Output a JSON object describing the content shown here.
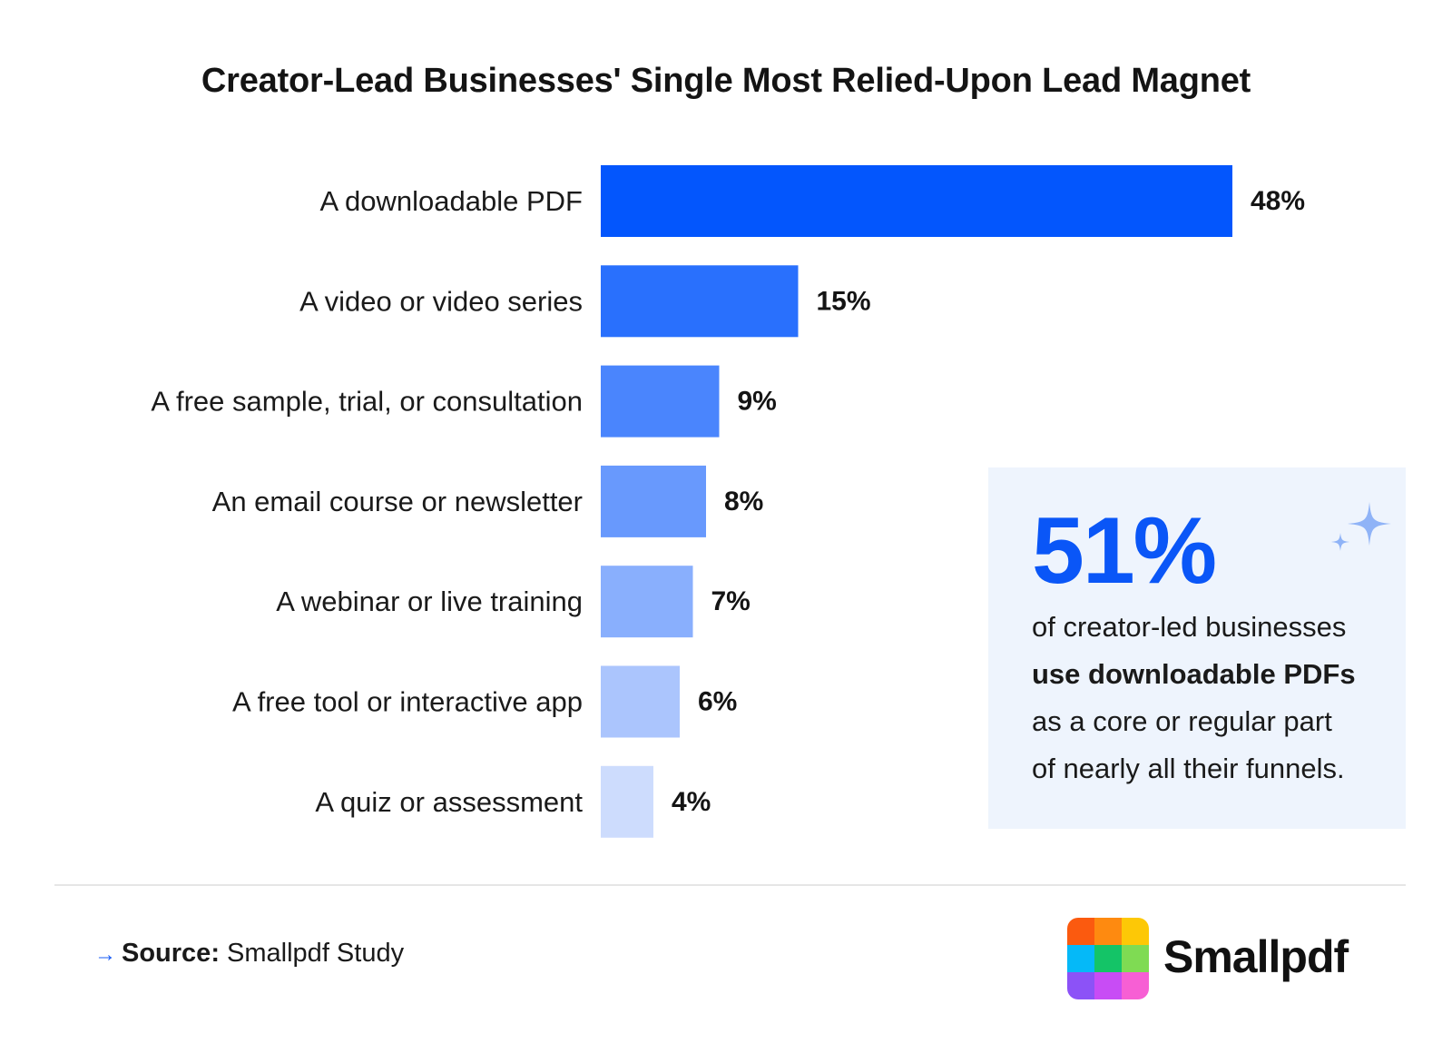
{
  "chart_data": {
    "type": "bar",
    "orientation": "horizontal",
    "title": "Creator-Lead Businesses' Single Most Relied-Upon Lead Magnet",
    "categories": [
      "A downloadable PDF",
      "A video or video series",
      "A free sample, trial, or consultation",
      "An email course or newsletter",
      "A webinar or live training",
      "A free tool or interactive app",
      "A quiz or assessment"
    ],
    "values": [
      48,
      15,
      9,
      8,
      7,
      6,
      4
    ],
    "value_labels": [
      "48%",
      "15%",
      "9%",
      "8%",
      "7%",
      "6%",
      "4%"
    ],
    "unit": "%",
    "bar_colors": [
      "#0356fd",
      "#2970fd",
      "#4a85fd",
      "#6899fd",
      "#89affd",
      "#abc5fd",
      "#cddcfd"
    ],
    "grid": false,
    "legend": "none"
  },
  "callout": {
    "big_number": "51%",
    "line1": "of creator-led businesses",
    "line2_bold": "use downloadable PDFs",
    "line3": "as a core or regular part",
    "line4": "of nearly all their funnels.",
    "background": "#eef4fd",
    "accent": "#0a56f7",
    "icon": "sparkle-icon"
  },
  "footer": {
    "arrow": "→",
    "source_label": "Source:",
    "source_value": " Smallpdf Study"
  },
  "brand": {
    "name": "Smallpdf",
    "logo_colors": [
      "#fb5a0f",
      "#fe8a10",
      "#fdc806",
      "#05b9f8",
      "#14c467",
      "#7fdb53",
      "#8c52f7",
      "#c84cf5",
      "#f75fd4"
    ]
  }
}
